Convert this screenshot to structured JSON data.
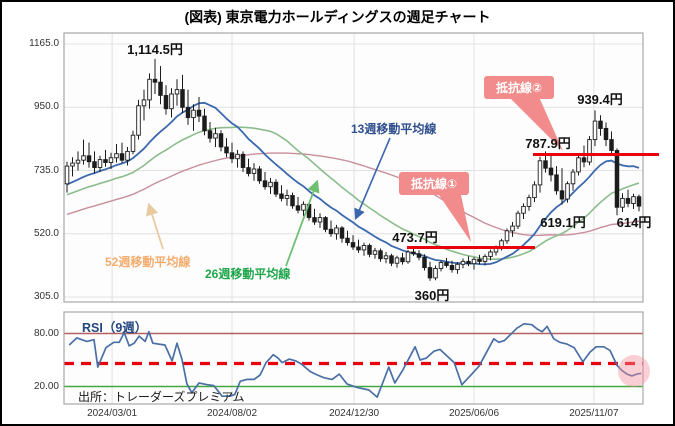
{
  "labels": {
    "title": "(図表) 東京電力ホールディングスの週足チャート",
    "source": "出所：トレーダーズプレミアム",
    "rsi_title": "RSI（9週）",
    "peak_price": "1,114.5円",
    "second_peak_price": "939.4円",
    "resistance2_price": "787.9円",
    "resistance1_price": "473.7円",
    "bottom_price": "360円",
    "pullback_low_price": "619.1円",
    "last_price": "614円",
    "resistance1_badge": "抵抗線①",
    "resistance2_badge": "抵抗線②",
    "ma13": "13週移動平均線",
    "ma26": "26週移動平均線",
    "ma52": "52週移動平均線"
  },
  "colors": {
    "accent_red": "#e8000d",
    "badge_pink": "#f28b8b",
    "ma13_blue": "#3a68ae",
    "ma26_green": "#8cbc8c",
    "ma52_pink": "#c88f9b",
    "label_blue": "#2f4f8f",
    "label_green": "#1fa64a",
    "label_orange": "#f4ac6e",
    "rsi_blue": "#4a6fa5",
    "rsi_upper_red": "#b85f5f",
    "rsi_lower_green": "#43a843",
    "grid": "#e2e2e2",
    "panel_border": "#a8a8a8",
    "panel_bg": "#fdfdfd",
    "candle": "#1c1c1c",
    "highlight_pink": "rgba(242,140,158,0.42)"
  },
  "chart_data": {
    "type": "candlestick",
    "unit": "円",
    "price_axis": {
      "ticks": [
        {
          "label": "1165.0",
          "value": 1165
        },
        {
          "label": "950.0",
          "value": 950
        },
        {
          "label": "735.0",
          "value": 735
        },
        {
          "label": "520.0",
          "value": 520
        },
        {
          "label": "305.0",
          "value": 305
        }
      ]
    },
    "x_axis": {
      "ticks": [
        {
          "label": "2024/03/01",
          "week": 8.2
        },
        {
          "label": "2024/08/02",
          "week": 30
        },
        {
          "label": "2024/12/30",
          "week": 52.2
        },
        {
          "label": "2025/06/06",
          "week": 74
        },
        {
          "label": "2025/11/07",
          "week": 95.8
        }
      ]
    },
    "key_points": {
      "peak_high": 1114.5,
      "second_peak_high": 939.4,
      "bottom_low": 360,
      "pullback_low": 619.1,
      "last_close": 614
    },
    "resistance_levels": [
      {
        "name": "抵抗線①",
        "price": 473.7
      },
      {
        "name": "抵抗線②",
        "price": 787.9
      }
    ],
    "ma_periods": [
      13,
      26,
      52
    ],
    "candles_ohlc": [
      [
        690,
        765,
        660,
        750
      ],
      [
        750,
        780,
        715,
        760
      ],
      [
        760,
        800,
        735,
        770
      ],
      [
        770,
        840,
        755,
        785
      ],
      [
        785,
        830,
        745,
        765
      ],
      [
        765,
        800,
        725,
        745
      ],
      [
        745,
        785,
        730,
        772
      ],
      [
        772,
        805,
        748,
        762
      ],
      [
        762,
        795,
        740,
        778
      ],
      [
        778,
        825,
        762,
        792
      ],
      [
        792,
        830,
        760,
        770
      ],
      [
        770,
        815,
        752,
        800
      ],
      [
        800,
        870,
        790,
        855
      ],
      [
        855,
        975,
        840,
        955
      ],
      [
        955,
        1010,
        905,
        975
      ],
      [
        975,
        1065,
        945,
        1045
      ],
      [
        1045,
        1114.5,
        995,
        1035
      ],
      [
        1035,
        1090,
        960,
        990
      ],
      [
        990,
        1025,
        925,
        945
      ],
      [
        945,
        1015,
        915,
        995
      ],
      [
        995,
        1045,
        955,
        1010
      ],
      [
        1010,
        1060,
        930,
        950
      ],
      [
        950,
        1010,
        890,
        915
      ],
      [
        915,
        960,
        870,
        940
      ],
      [
        940,
        985,
        900,
        920
      ],
      [
        920,
        945,
        855,
        870
      ],
      [
        870,
        900,
        830,
        845
      ],
      [
        845,
        880,
        815,
        860
      ],
      [
        860,
        872,
        800,
        815
      ],
      [
        815,
        845,
        780,
        795
      ],
      [
        795,
        830,
        760,
        775
      ],
      [
        775,
        805,
        745,
        790
      ],
      [
        790,
        800,
        730,
        745
      ],
      [
        745,
        775,
        715,
        725
      ],
      [
        725,
        760,
        700,
        740
      ],
      [
        740,
        750,
        690,
        700
      ],
      [
        700,
        730,
        670,
        680
      ],
      [
        680,
        710,
        655,
        695
      ],
      [
        695,
        705,
        645,
        655
      ],
      [
        655,
        685,
        630,
        640
      ],
      [
        640,
        670,
        615,
        650
      ],
      [
        650,
        660,
        605,
        615
      ],
      [
        615,
        645,
        590,
        600
      ],
      [
        600,
        630,
        580,
        620
      ],
      [
        620,
        628,
        565,
        575
      ],
      [
        575,
        605,
        550,
        560
      ],
      [
        560,
        590,
        540,
        575
      ],
      [
        575,
        580,
        525,
        535
      ],
      [
        535,
        565,
        510,
        520
      ],
      [
        520,
        550,
        500,
        540
      ],
      [
        540,
        546,
        490,
        505
      ],
      [
        505,
        530,
        480,
        490
      ],
      [
        490,
        515,
        465,
        475
      ],
      [
        475,
        500,
        455,
        465
      ],
      [
        465,
        490,
        445,
        480
      ],
      [
        480,
        487,
        440,
        450
      ],
      [
        450,
        472,
        435,
        462
      ],
      [
        462,
        470,
        425,
        435
      ],
      [
        435,
        458,
        420,
        445
      ],
      [
        445,
        452,
        410,
        420
      ],
      [
        420,
        445,
        405,
        438
      ],
      [
        438,
        455,
        415,
        425
      ],
      [
        425,
        465,
        418,
        458
      ],
      [
        458,
        473,
        445,
        452
      ],
      [
        452,
        464,
        430,
        440
      ],
      [
        440,
        450,
        395,
        405
      ],
      [
        405,
        425,
        360,
        370
      ],
      [
        370,
        412,
        362,
        402
      ],
      [
        402,
        430,
        392,
        422
      ],
      [
        422,
        438,
        405,
        412
      ],
      [
        412,
        428,
        388,
        398
      ],
      [
        398,
        424,
        384,
        416
      ],
      [
        416,
        436,
        403,
        426
      ],
      [
        426,
        443,
        410,
        418
      ],
      [
        418,
        440,
        398,
        433
      ],
      [
        433,
        448,
        416,
        426
      ],
      [
        426,
        450,
        413,
        443
      ],
      [
        443,
        466,
        430,
        458
      ],
      [
        458,
        480,
        446,
        473
      ],
      [
        473,
        503,
        463,
        496
      ],
      [
        496,
        538,
        486,
        530
      ],
      [
        530,
        560,
        510,
        546
      ],
      [
        546,
        598,
        536,
        590
      ],
      [
        590,
        623,
        570,
        613
      ],
      [
        613,
        653,
        598,
        643
      ],
      [
        643,
        698,
        628,
        686
      ],
      [
        686,
        782,
        660,
        768
      ],
      [
        768,
        800,
        728,
        743
      ],
      [
        743,
        788,
        698,
        720
      ],
      [
        720,
        750,
        653,
        666
      ],
      [
        666,
        743,
        619.1,
        638
      ],
      [
        638,
        698,
        626,
        690
      ],
      [
        690,
        740,
        666,
        730
      ],
      [
        730,
        790,
        718,
        778
      ],
      [
        778,
        820,
        746,
        764
      ],
      [
        764,
        852,
        753,
        840
      ],
      [
        840,
        939.4,
        818,
        903
      ],
      [
        903,
        923,
        853,
        878
      ],
      [
        878,
        898,
        818,
        840
      ],
      [
        840,
        868,
        788,
        803
      ],
      [
        803,
        810,
        583,
        610
      ],
      [
        610,
        658,
        594,
        640
      ],
      [
        640,
        670,
        610,
        623
      ],
      [
        623,
        656,
        604,
        646
      ],
      [
        646,
        653,
        596,
        614
      ]
    ],
    "rsi": {
      "period": 9,
      "axis_ticks": [
        {
          "label": "80.00",
          "value": 80
        },
        {
          "label": "20.00",
          "value": 20
        }
      ],
      "upper_level": 80,
      "lower_level": 20,
      "dashed_level": 46,
      "points_week_value": [
        [
          0.4,
          67
        ],
        [
          1.8,
          75
        ],
        [
          3.6,
          71
        ],
        [
          4.9,
          73
        ],
        [
          5.6,
          42
        ],
        [
          7.1,
          64
        ],
        [
          8.5,
          70
        ],
        [
          9.5,
          70
        ],
        [
          10.4,
          81
        ],
        [
          11.3,
          66
        ],
        [
          12.2,
          69
        ],
        [
          13.1,
          77
        ],
        [
          14.2,
          71
        ],
        [
          14.9,
          82
        ],
        [
          15.6,
          69
        ],
        [
          16.7,
          68
        ],
        [
          17.8,
          67
        ],
        [
          19.1,
          49
        ],
        [
          20,
          69
        ],
        [
          20.9,
          51
        ],
        [
          21.8,
          23
        ],
        [
          22.7,
          13
        ],
        [
          24,
          24
        ],
        [
          25.5,
          22
        ],
        [
          26.7,
          21
        ],
        [
          28.2,
          9
        ],
        [
          29.6,
          9
        ],
        [
          30.5,
          11
        ],
        [
          31.5,
          26
        ],
        [
          32.7,
          28
        ],
        [
          34,
          28
        ],
        [
          35.1,
          33
        ],
        [
          36.2,
          47
        ],
        [
          37.5,
          56
        ],
        [
          38.4,
          52
        ],
        [
          39.1,
          47
        ],
        [
          40.4,
          51
        ],
        [
          41.6,
          49
        ],
        [
          42.7,
          45
        ],
        [
          44.2,
          37
        ],
        [
          45.5,
          33
        ],
        [
          46.7,
          30
        ],
        [
          48.2,
          28
        ],
        [
          49.5,
          34
        ],
        [
          50.9,
          23
        ],
        [
          52.7,
          19
        ],
        [
          54.9,
          16
        ],
        [
          56.4,
          8
        ],
        [
          58.5,
          42
        ],
        [
          59.6,
          24
        ],
        [
          61,
          38
        ],
        [
          63.3,
          65
        ],
        [
          64.2,
          50
        ],
        [
          65.3,
          52
        ],
        [
          66.7,
          60
        ],
        [
          67.8,
          62
        ],
        [
          70.4,
          47
        ],
        [
          71.8,
          22
        ],
        [
          73.3,
          32
        ],
        [
          74.9,
          43
        ],
        [
          77.6,
          74
        ],
        [
          78.5,
          70
        ],
        [
          79.5,
          72
        ],
        [
          80.5,
          78
        ],
        [
          81.8,
          86
        ],
        [
          83.1,
          91
        ],
        [
          84.5,
          90
        ],
        [
          85.5,
          85
        ],
        [
          86.4,
          82
        ],
        [
          87.3,
          88
        ],
        [
          88.5,
          74
        ],
        [
          89.6,
          70
        ],
        [
          90.9,
          68
        ],
        [
          92.2,
          64
        ],
        [
          93.8,
          48
        ],
        [
          95.1,
          59
        ],
        [
          96.2,
          65
        ],
        [
          97.6,
          65
        ],
        [
          98.7,
          61
        ],
        [
          100,
          44
        ],
        [
          100.9,
          38
        ],
        [
          101.8,
          34
        ],
        [
          102.7,
          32
        ],
        [
          103.6,
          34
        ],
        [
          104.4,
          35
        ]
      ],
      "highlight": {
        "week": 103,
        "value": 38
      }
    }
  }
}
